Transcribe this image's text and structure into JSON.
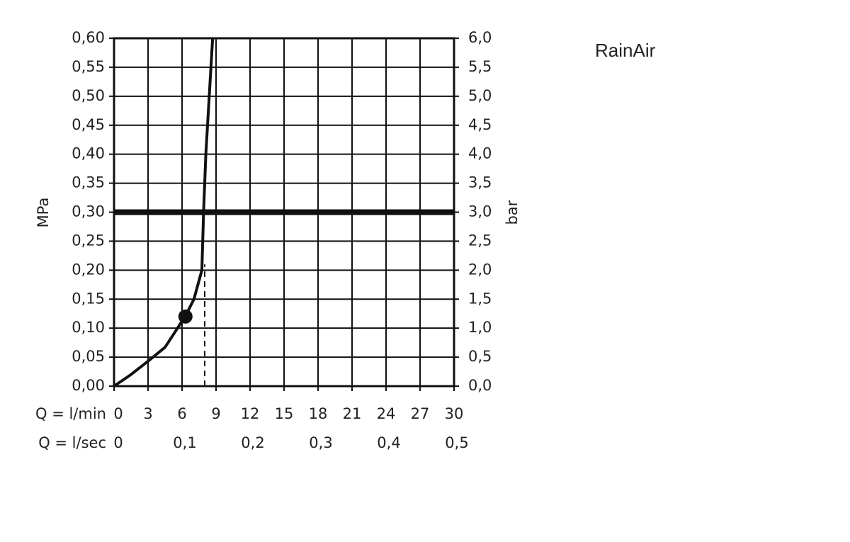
{
  "chart_data": {
    "type": "line",
    "title": "RainAir",
    "y_label": "MPa",
    "y2_label": "bar",
    "x_label": "Q = l/min",
    "x2_label": "Q = l/sec",
    "x": [
      0,
      1.5,
      3,
      4.5,
      6.3,
      7.05,
      7.75,
      7.9,
      8.1,
      8.4,
      8.7
    ],
    "values": [
      0,
      0.02,
      0.043,
      0.067,
      0.121,
      0.15,
      0.2,
      0.3,
      0.4,
      0.5,
      0.6
    ],
    "color": "#111111",
    "marker": {
      "x": 6.3,
      "y": 0.12
    },
    "dashed_x": 8,
    "dashed_top": 0.21,
    "reference_y": 0.3,
    "grid": true,
    "xlim": [
      0,
      30
    ],
    "xticks": [
      0,
      3,
      6,
      9,
      12,
      15,
      18,
      21,
      24,
      27,
      30
    ],
    "x2lim": [
      0,
      0.5
    ],
    "x2ticks": [
      0,
      {
        "value": 0.1,
        "label": "0,1"
      },
      {
        "value": 0.2,
        "label": "0,2"
      },
      {
        "value": 0.3,
        "label": "0,3"
      },
      {
        "value": 0.4,
        "label": "0,4"
      },
      {
        "value": 0.5,
        "label": "0,5"
      }
    ],
    "ylim": [
      0,
      0.6
    ],
    "yticks": [
      {
        "value": 0,
        "label": "0,00"
      },
      {
        "value": 0.05,
        "label": "0,05"
      },
      {
        "value": 0.1,
        "label": "0,10"
      },
      {
        "value": 0.15,
        "label": "0,15"
      },
      {
        "value": 0.2,
        "label": "0,20"
      },
      {
        "value": 0.25,
        "label": "0,25"
      },
      {
        "value": 0.3,
        "label": "0,30"
      },
      {
        "value": 0.35,
        "label": "0,35"
      },
      {
        "value": 0.4,
        "label": "0,40"
      },
      {
        "value": 0.45,
        "label": "0,45"
      },
      {
        "value": 0.5,
        "label": "0,50"
      },
      {
        "value": 0.55,
        "label": "0,55"
      },
      {
        "value": 0.6,
        "label": "0,60"
      }
    ],
    "y2lim": [
      0,
      6
    ],
    "y2ticks": [
      {
        "value": 0,
        "label": "0,0"
      },
      {
        "value": 0.5,
        "label": "0,5"
      },
      {
        "value": 1,
        "label": "1,0"
      },
      {
        "value": 1.5,
        "label": "1,5"
      },
      {
        "value": 2,
        "label": "2,0"
      },
      {
        "value": 2.5,
        "label": "2,5"
      },
      {
        "value": 3,
        "label": "3,0"
      },
      {
        "value": 3.5,
        "label": "3,5"
      },
      {
        "value": 4,
        "label": "4,0"
      },
      {
        "value": 4.5,
        "label": "4,5"
      },
      {
        "value": 5,
        "label": "5,0"
      },
      {
        "value": 5.5,
        "label": "5,5"
      },
      {
        "value": 6,
        "label": "6,0"
      }
    ]
  }
}
